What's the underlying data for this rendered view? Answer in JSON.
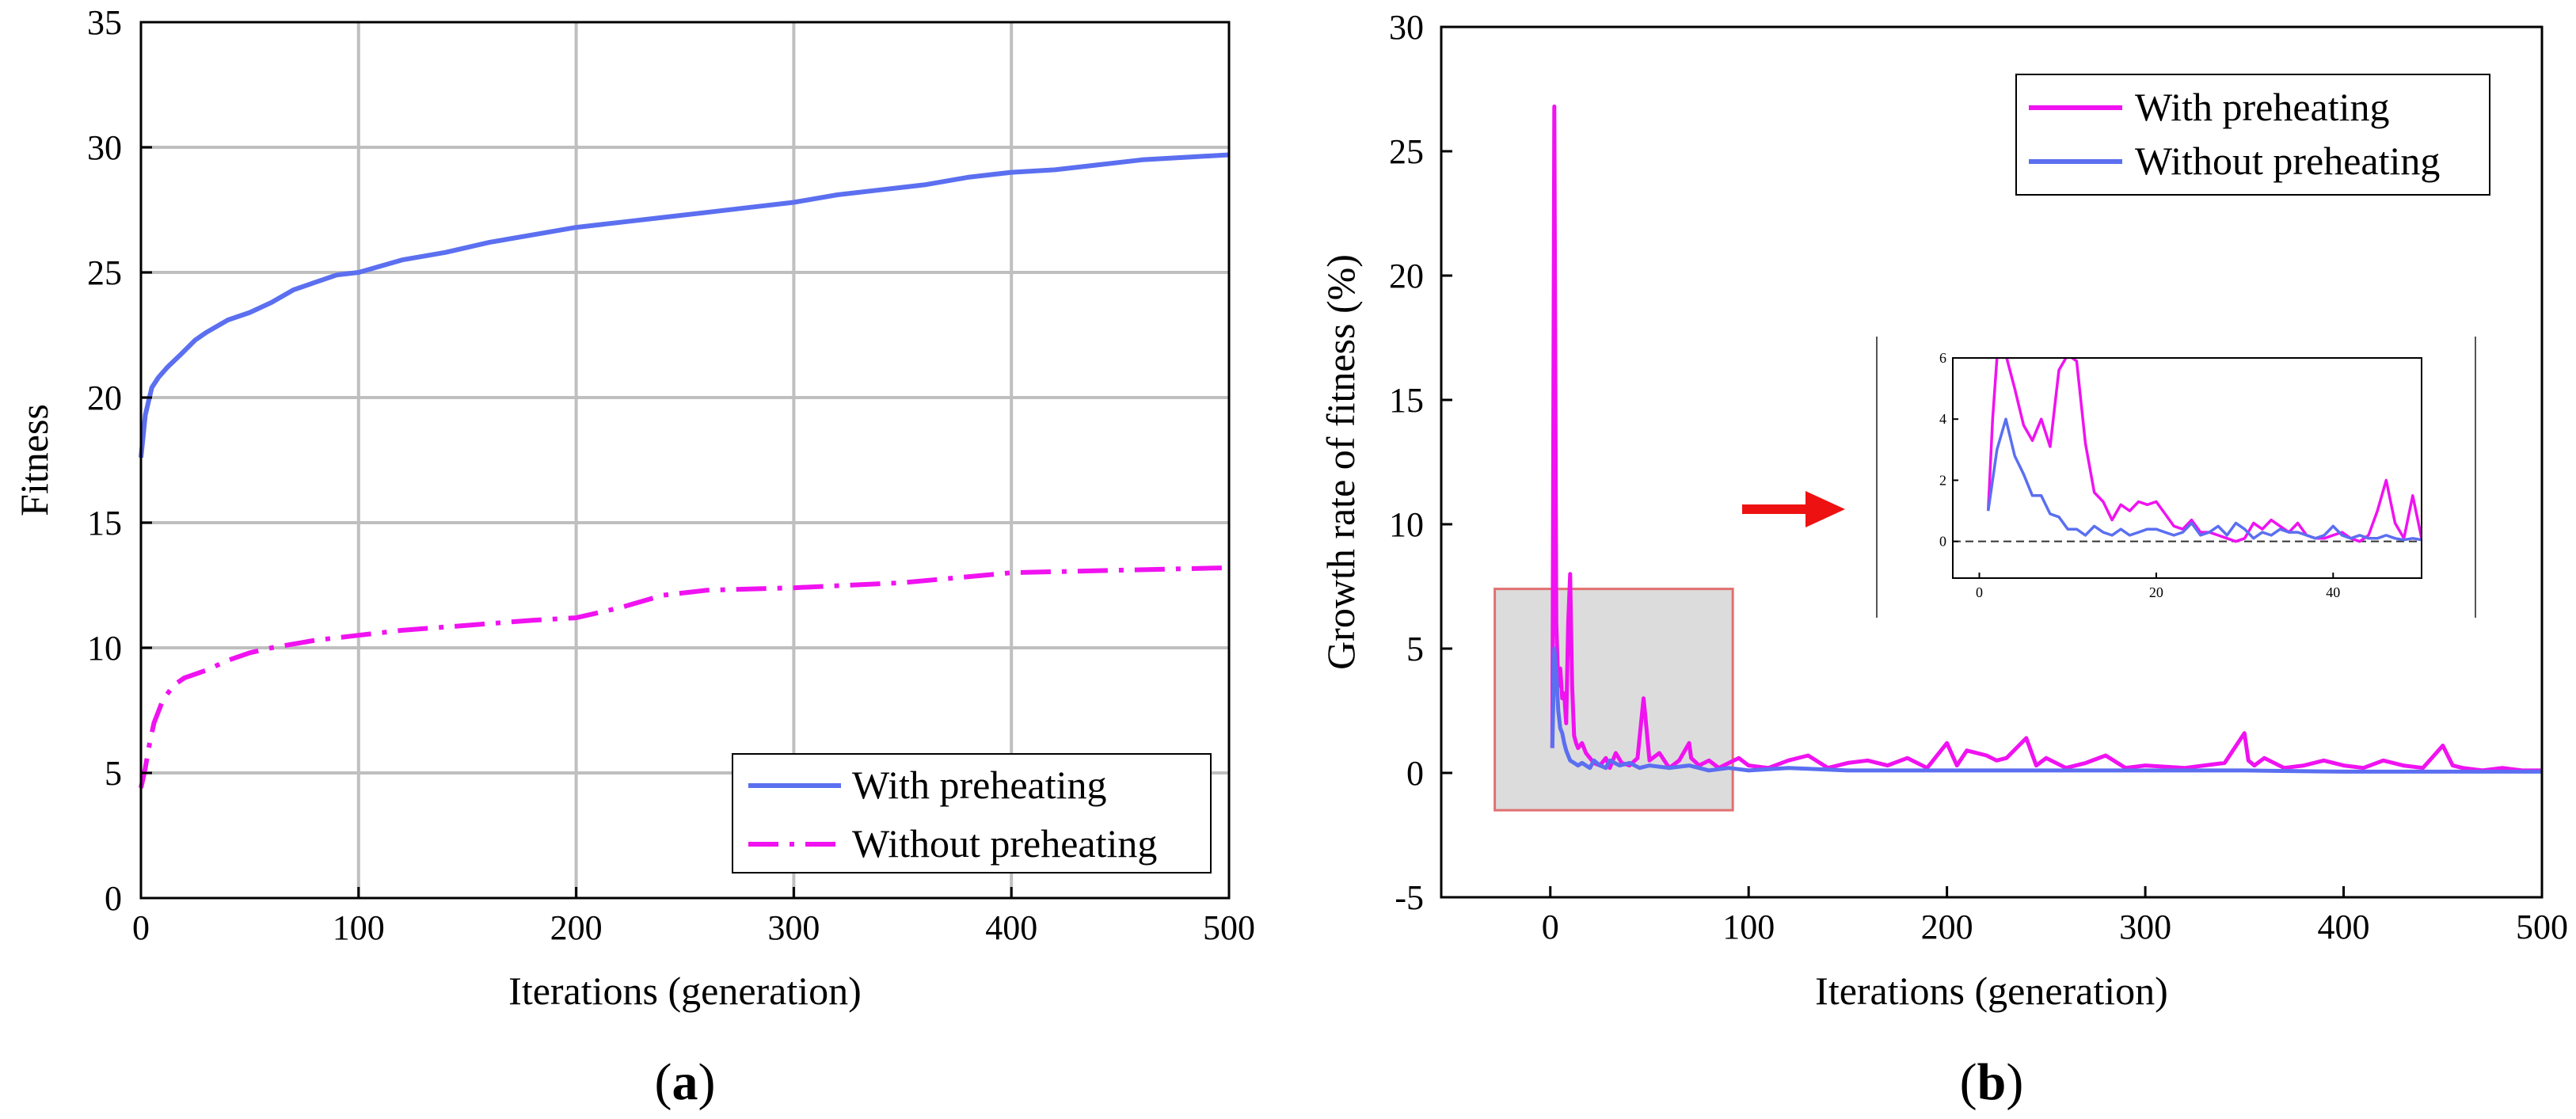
{
  "colors": {
    "with_preheating": "#5b6ff0",
    "without_preheating": "#f012f0",
    "grid": "#bfbfbf",
    "highlight_fill": "#dcdcdc",
    "highlight_stroke": "#e07070",
    "arrow": "#ee1111",
    "inset_baseline": "#333333"
  },
  "panels": {
    "a": {
      "label_open": "(",
      "label_letter": "a",
      "label_close": ")",
      "ylabel": "Fitness",
      "xlabel": "Iterations (generation)",
      "legend": [
        "With preheating",
        "Without preheating"
      ]
    },
    "b": {
      "label_open": "(",
      "label_letter": "b",
      "label_close": ")",
      "ylabel": "Growth rate of fitness (%)",
      "xlabel": "Iterations (generation)",
      "legend": [
        "With preheating",
        "Without preheating"
      ]
    }
  },
  "chart_data": [
    {
      "type": "line",
      "panel": "a",
      "xlabel": "Iterations (generation)",
      "ylabel": "Fitness",
      "xlim": [
        0,
        500
      ],
      "ylim": [
        0,
        35
      ],
      "xticks": [
        0,
        100,
        200,
        300,
        400,
        500
      ],
      "yticks": [
        0,
        5,
        10,
        15,
        20,
        25,
        30,
        35
      ],
      "grid": true,
      "legend_position": "bottom-right",
      "series": [
        {
          "name": "With preheating",
          "style": "solid",
          "x": [
            0,
            2,
            5,
            8,
            12,
            18,
            25,
            30,
            40,
            50,
            60,
            70,
            80,
            90,
            100,
            120,
            140,
            160,
            180,
            200,
            220,
            240,
            260,
            280,
            300,
            320,
            340,
            360,
            380,
            400,
            420,
            440,
            460,
            480,
            500
          ],
          "y": [
            17.6,
            19.3,
            20.4,
            20.8,
            21.2,
            21.7,
            22.3,
            22.6,
            23.1,
            23.4,
            23.8,
            24.3,
            24.6,
            24.9,
            25.0,
            25.5,
            25.8,
            26.2,
            26.5,
            26.8,
            27.0,
            27.2,
            27.4,
            27.6,
            27.8,
            28.1,
            28.3,
            28.5,
            28.8,
            29.0,
            29.1,
            29.3,
            29.5,
            29.6,
            29.7
          ]
        },
        {
          "name": "Without preheating",
          "style": "dashdot",
          "x": [
            0,
            2,
            4,
            6,
            10,
            15,
            20,
            30,
            40,
            50,
            60,
            80,
            100,
            120,
            150,
            180,
            200,
            220,
            240,
            260,
            300,
            350,
            400,
            450,
            500
          ],
          "y": [
            4.4,
            5.2,
            6.2,
            7.0,
            7.9,
            8.5,
            8.8,
            9.1,
            9.5,
            9.8,
            10.0,
            10.3,
            10.5,
            10.7,
            10.9,
            11.1,
            11.2,
            11.6,
            12.1,
            12.3,
            12.4,
            12.6,
            13.0,
            13.1,
            13.2
          ]
        }
      ]
    },
    {
      "type": "line",
      "panel": "b",
      "xlabel": "Iterations (generation)",
      "ylabel": "Growth rate of fitness (%)",
      "xlim": [
        -55,
        500
      ],
      "ylim": [
        -5,
        30
      ],
      "xticks": [
        0,
        100,
        200,
        300,
        400,
        500
      ],
      "yticks": [
        -5,
        0,
        5,
        10,
        15,
        20,
        25,
        30
      ],
      "grid": false,
      "legend_position": "top-right",
      "series": [
        {
          "name": "With preheating",
          "x": [
            1,
            2,
            3,
            4,
            5,
            6,
            7,
            8,
            9,
            10,
            11,
            12,
            13,
            14,
            16,
            18,
            20,
            22,
            25,
            28,
            30,
            33,
            36,
            40,
            44,
            47,
            48,
            50,
            55,
            60,
            65,
            70,
            71,
            75,
            80,
            85,
            90,
            95,
            100,
            110,
            120,
            130,
            140,
            150,
            160,
            170,
            180,
            190,
            200,
            205,
            210,
            220,
            225,
            230,
            240,
            245,
            250,
            260,
            270,
            280,
            290,
            300,
            320,
            340,
            350,
            352,
            355,
            360,
            370,
            380,
            390,
            400,
            410,
            420,
            430,
            440,
            450,
            455,
            460,
            470,
            480,
            490,
            500
          ],
          "y": [
            1.0,
            26.8,
            6.0,
            3.5,
            4.2,
            3.0,
            3.2,
            2.0,
            6.0,
            8.0,
            3.5,
            1.5,
            1.2,
            1.0,
            1.2,
            0.8,
            0.6,
            0.4,
            0.3,
            0.6,
            0.2,
            0.8,
            0.4,
            0.3,
            0.6,
            3.0,
            2.2,
            0.5,
            0.8,
            0.2,
            0.5,
            1.2,
            0.6,
            0.3,
            0.5,
            0.2,
            0.4,
            0.6,
            0.3,
            0.2,
            0.5,
            0.7,
            0.2,
            0.4,
            0.5,
            0.3,
            0.6,
            0.2,
            1.2,
            0.3,
            0.9,
            0.7,
            0.5,
            0.6,
            1.4,
            0.3,
            0.6,
            0.2,
            0.4,
            0.7,
            0.2,
            0.3,
            0.2,
            0.4,
            1.6,
            0.5,
            0.3,
            0.6,
            0.2,
            0.3,
            0.5,
            0.3,
            0.2,
            0.5,
            0.3,
            0.2,
            1.1,
            0.3,
            0.2,
            0.1,
            0.2,
            0.1,
            0.1
          ]
        },
        {
          "name": "Without preheating",
          "x": [
            1,
            2,
            3,
            4,
            5,
            6,
            7,
            8,
            9,
            10,
            12,
            14,
            16,
            18,
            20,
            22,
            25,
            28,
            30,
            35,
            40,
            45,
            50,
            60,
            70,
            80,
            90,
            100,
            120,
            150,
            200,
            250,
            300,
            350,
            400,
            450,
            500
          ],
          "y": [
            1.0,
            5.0,
            4.0,
            2.5,
            1.8,
            1.6,
            1.2,
            0.9,
            0.7,
            0.5,
            0.4,
            0.3,
            0.4,
            0.3,
            0.2,
            0.5,
            0.3,
            0.2,
            0.5,
            0.3,
            0.4,
            0.2,
            0.3,
            0.2,
            0.3,
            0.1,
            0.2,
            0.1,
            0.2,
            0.1,
            0.1,
            0.1,
            0.1,
            0.1,
            0.05,
            0.05,
            0.05
          ]
        }
      ],
      "highlight_region": {
        "x": [
          -28,
          92
        ],
        "y": [
          -1.5,
          7.4
        ]
      },
      "inset": {
        "xlim": [
          -3,
          50
        ],
        "ylim": [
          -1.2,
          6
        ],
        "xticks": [
          0,
          20,
          40
        ],
        "yticks": [
          0,
          2,
          4,
          6
        ],
        "baseline_y": 0,
        "series": [
          {
            "name": "With preheating",
            "x": [
              1,
              1.5,
              2,
              2.5,
              3,
              4,
              5,
              6,
              7,
              8,
              9,
              10,
              11,
              12,
              13,
              14,
              15,
              16,
              17,
              18,
              19,
              20,
              21,
              22,
              23,
              24,
              25,
              26,
              27,
              28,
              29,
              30,
              31,
              32,
              33,
              34,
              35,
              36,
              37,
              38,
              39,
              40,
              41,
              42,
              43,
              44,
              45,
              46,
              47,
              48,
              49,
              50
            ],
            "y": [
              1.0,
              4.0,
              6.0,
              6.2,
              6.1,
              5.0,
              3.8,
              3.3,
              4.0,
              3.1,
              5.6,
              6.1,
              5.9,
              3.2,
              1.6,
              1.3,
              0.7,
              1.2,
              1.0,
              1.3,
              1.2,
              1.3,
              0.9,
              0.5,
              0.4,
              0.7,
              0.3,
              0.3,
              0.2,
              0.1,
              0.0,
              0.1,
              0.6,
              0.4,
              0.7,
              0.5,
              0.3,
              0.6,
              0.2,
              0.1,
              0.1,
              0.2,
              0.3,
              0.1,
              0.0,
              0.2,
              1.0,
              2.0,
              0.6,
              0.1,
              1.5,
              0.1
            ]
          },
          {
            "name": "Without preheating",
            "x": [
              1,
              2,
              3,
              4,
              5,
              6,
              7,
              8,
              9,
              10,
              11,
              12,
              13,
              14,
              15,
              16,
              17,
              18,
              19,
              20,
              21,
              22,
              23,
              24,
              25,
              26,
              27,
              28,
              29,
              30,
              31,
              32,
              33,
              34,
              35,
              36,
              37,
              38,
              39,
              40,
              41,
              42,
              43,
              44,
              45,
              46,
              47,
              48,
              49,
              50
            ],
            "y": [
              1.0,
              3.0,
              4.0,
              2.8,
              2.2,
              1.5,
              1.5,
              0.9,
              0.8,
              0.4,
              0.4,
              0.2,
              0.5,
              0.3,
              0.2,
              0.4,
              0.2,
              0.3,
              0.4,
              0.4,
              0.3,
              0.2,
              0.3,
              0.6,
              0.2,
              0.3,
              0.5,
              0.2,
              0.6,
              0.4,
              0.1,
              0.3,
              0.2,
              0.4,
              0.3,
              0.3,
              0.2,
              0.1,
              0.2,
              0.5,
              0.2,
              0.1,
              0.2,
              0.1,
              0.1,
              0.2,
              0.1,
              0.05,
              0.1,
              0.05
            ]
          }
        ]
      }
    }
  ]
}
